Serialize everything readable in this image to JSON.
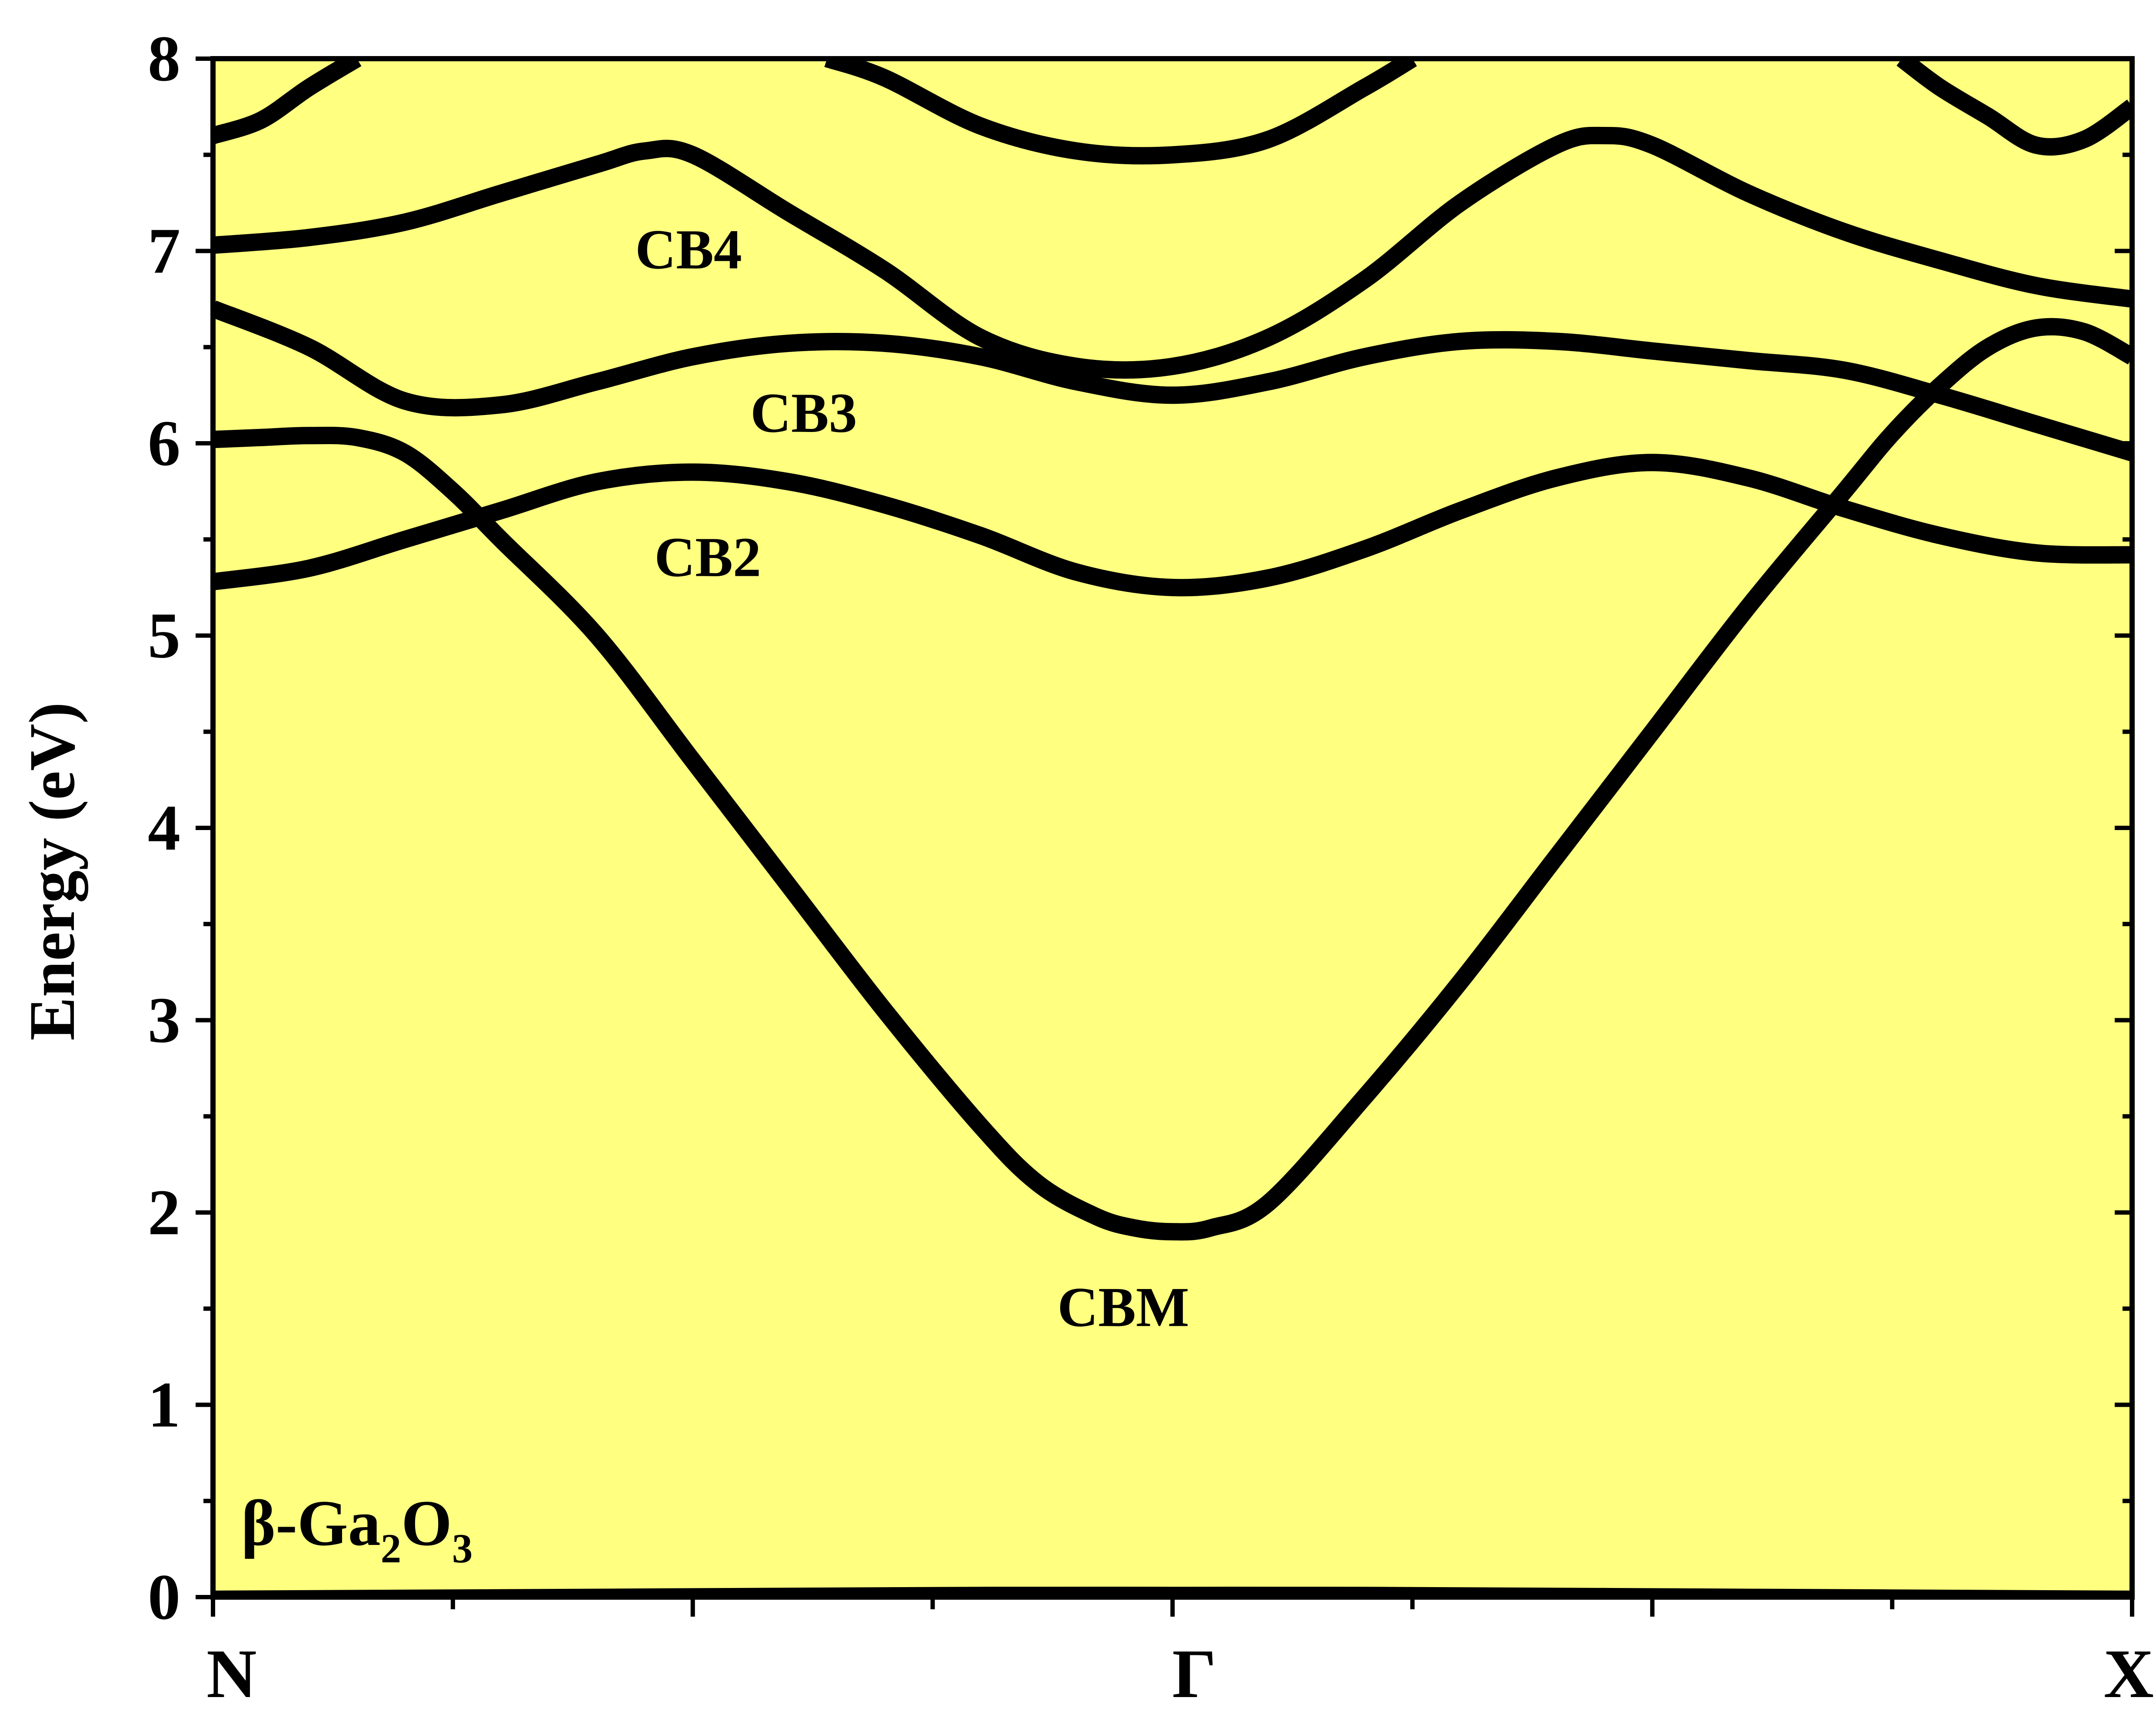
{
  "chart_data": {
    "type": "line",
    "title": "",
    "xlabel": "",
    "ylabel": "Energy (eV)",
    "ylim": [
      0,
      8
    ],
    "xlim": [
      0,
      1
    ],
    "plot_background": "#ffff80",
    "line_color": "#000000",
    "x_tick_labels": [
      {
        "x": 0.0,
        "label": "N"
      },
      {
        "x": 0.5,
        "label": "Γ"
      },
      {
        "x": 1.0,
        "label": "X"
      }
    ],
    "y_ticks": [
      0,
      1,
      2,
      3,
      4,
      5,
      6,
      7,
      8
    ],
    "annotations": [
      {
        "text": "CB4",
        "x": 0.22,
        "y": 7.0
      },
      {
        "text": "CB3",
        "x": 0.28,
        "y": 6.15
      },
      {
        "text": "CB2",
        "x": 0.23,
        "y": 5.4
      },
      {
        "text": "CBM",
        "x": 0.44,
        "y": 1.5
      }
    ],
    "material": {
      "prefix": "β-Ga",
      "sub1": "2",
      "mid": "O",
      "sub2": "3"
    },
    "series": [
      {
        "values": [
          [
            0.0,
            0.0
          ],
          [
            0.2,
            0.01
          ],
          [
            0.4,
            0.02
          ],
          [
            0.5,
            0.02
          ],
          [
            0.6,
            0.02
          ],
          [
            0.8,
            0.01
          ],
          [
            1.0,
            0.0
          ]
        ]
      },
      {
        "values": [
          [
            0.0,
            6.02
          ],
          [
            0.025,
            6.03
          ],
          [
            0.05,
            6.04
          ],
          [
            0.075,
            6.03
          ],
          [
            0.1,
            5.95
          ],
          [
            0.125,
            5.75
          ],
          [
            0.15,
            5.5
          ],
          [
            0.2,
            5.0
          ],
          [
            0.25,
            4.35
          ],
          [
            0.3,
            3.7
          ],
          [
            0.35,
            3.05
          ],
          [
            0.4,
            2.45
          ],
          [
            0.43,
            2.15
          ],
          [
            0.46,
            1.98
          ],
          [
            0.48,
            1.92
          ],
          [
            0.5,
            1.9
          ],
          [
            0.52,
            1.92
          ],
          [
            0.55,
            2.05
          ],
          [
            0.6,
            2.6
          ],
          [
            0.65,
            3.2
          ],
          [
            0.7,
            3.85
          ],
          [
            0.75,
            4.5
          ],
          [
            0.8,
            5.15
          ],
          [
            0.85,
            5.75
          ],
          [
            0.875,
            6.05
          ],
          [
            0.9,
            6.3
          ],
          [
            0.925,
            6.5
          ],
          [
            0.95,
            6.6
          ],
          [
            0.975,
            6.58
          ],
          [
            1.0,
            6.45
          ]
        ]
      },
      {
        "values": [
          [
            0.0,
            5.28
          ],
          [
            0.05,
            5.35
          ],
          [
            0.1,
            5.5
          ],
          [
            0.15,
            5.65
          ],
          [
            0.2,
            5.8
          ],
          [
            0.25,
            5.85
          ],
          [
            0.3,
            5.8
          ],
          [
            0.35,
            5.68
          ],
          [
            0.4,
            5.52
          ],
          [
            0.45,
            5.33
          ],
          [
            0.5,
            5.25
          ],
          [
            0.55,
            5.3
          ],
          [
            0.6,
            5.45
          ],
          [
            0.65,
            5.65
          ],
          [
            0.7,
            5.82
          ],
          [
            0.75,
            5.9
          ],
          [
            0.8,
            5.82
          ],
          [
            0.85,
            5.66
          ],
          [
            0.9,
            5.52
          ],
          [
            0.95,
            5.43
          ],
          [
            1.0,
            5.42
          ]
        ]
      },
      {
        "values": [
          [
            0.0,
            6.7
          ],
          [
            0.05,
            6.5
          ],
          [
            0.1,
            6.22
          ],
          [
            0.15,
            6.2
          ],
          [
            0.2,
            6.32
          ],
          [
            0.25,
            6.45
          ],
          [
            0.3,
            6.52
          ],
          [
            0.35,
            6.52
          ],
          [
            0.4,
            6.45
          ],
          [
            0.45,
            6.32
          ],
          [
            0.5,
            6.25
          ],
          [
            0.55,
            6.32
          ],
          [
            0.6,
            6.45
          ],
          [
            0.65,
            6.53
          ],
          [
            0.7,
            6.53
          ],
          [
            0.75,
            6.48
          ],
          [
            0.8,
            6.43
          ],
          [
            0.85,
            6.38
          ],
          [
            0.9,
            6.25
          ],
          [
            0.95,
            6.1
          ],
          [
            1.0,
            5.95
          ]
        ]
      },
      {
        "values": [
          [
            0.0,
            7.03
          ],
          [
            0.05,
            7.07
          ],
          [
            0.1,
            7.15
          ],
          [
            0.15,
            7.3
          ],
          [
            0.2,
            7.45
          ],
          [
            0.225,
            7.52
          ],
          [
            0.25,
            7.5
          ],
          [
            0.3,
            7.2
          ],
          [
            0.35,
            6.9
          ],
          [
            0.4,
            6.55
          ],
          [
            0.45,
            6.4
          ],
          [
            0.5,
            6.4
          ],
          [
            0.55,
            6.55
          ],
          [
            0.6,
            6.85
          ],
          [
            0.65,
            7.25
          ],
          [
            0.7,
            7.55
          ],
          [
            0.725,
            7.6
          ],
          [
            0.75,
            7.55
          ],
          [
            0.8,
            7.3
          ],
          [
            0.85,
            7.1
          ],
          [
            0.9,
            6.95
          ],
          [
            0.95,
            6.82
          ],
          [
            1.0,
            6.75
          ]
        ]
      },
      {
        "values": [
          [
            0.0,
            7.6
          ],
          [
            0.025,
            7.68
          ],
          [
            0.05,
            7.85
          ],
          [
            0.075,
            8.0
          ]
        ]
      },
      {
        "values": [
          [
            0.32,
            8.0
          ],
          [
            0.35,
            7.9
          ],
          [
            0.4,
            7.65
          ],
          [
            0.45,
            7.52
          ],
          [
            0.5,
            7.5
          ],
          [
            0.55,
            7.58
          ],
          [
            0.6,
            7.85
          ],
          [
            0.625,
            8.0
          ]
        ]
      },
      {
        "values": [
          [
            0.88,
            8.0
          ],
          [
            0.9,
            7.85
          ],
          [
            0.925,
            7.7
          ],
          [
            0.95,
            7.55
          ],
          [
            0.975,
            7.58
          ],
          [
            1.0,
            7.75
          ]
        ]
      }
    ]
  }
}
